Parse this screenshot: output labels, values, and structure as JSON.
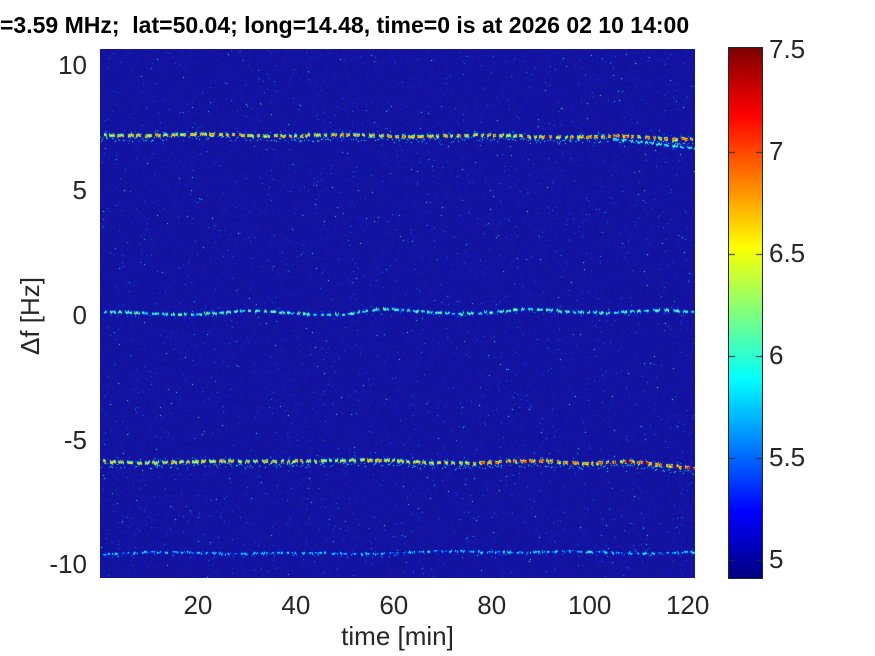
{
  "figure": {
    "title": "=3.59 MHz;  lat=50.04; long=14.48, time=0 is at 2026 02 10 14:00"
  },
  "chart_data": {
    "type": "heatmap",
    "title": "=3.59 MHz;  lat=50.04; long=14.48, time=0 is at 2026 02 10 14:00",
    "xlabel": "time [min]",
    "ylabel": "Δf [Hz]",
    "xlim": [
      0,
      121.5
    ],
    "ylim": [
      -10.55,
      10.65
    ],
    "xticks": [
      20,
      40,
      60,
      80,
      100,
      120
    ],
    "yticks": [
      10,
      5,
      0,
      -5,
      -10
    ],
    "grid": false,
    "legend": false,
    "colormap": "jet",
    "background_value": 4.98,
    "background_rgb": [
      20,
      20,
      158
    ],
    "noise": {
      "speckle_prob": 0.012,
      "speckle_value": [
        5.1,
        5.6
      ],
      "bright_speckle_prob": 0.0012,
      "bright_speckle_value": [
        5.7,
        6.2
      ]
    },
    "colorbar": {
      "vmin": 4.91,
      "vmax": 7.51,
      "ticks": [
        5,
        5.5,
        6,
        6.5,
        7,
        7.5
      ],
      "tick_color": "#262626"
    },
    "lines": [
      {
        "name": "doppler-trace-upper",
        "points": [
          [
            0,
            7.25
          ],
          [
            30,
            7.22
          ],
          [
            60,
            7.2
          ],
          [
            90,
            7.18
          ],
          [
            105,
            7.15
          ],
          [
            121.5,
            7.08
          ]
        ],
        "intensity": [
          6.4,
          7.05
        ],
        "intensity_right": [
          6.5,
          7.3
        ],
        "right_from": 95,
        "fuzz": "below"
      },
      {
        "name": "doppler-trace-upper-branch",
        "points": [
          [
            104,
            7.1
          ],
          [
            112,
            6.95
          ],
          [
            121.5,
            6.68
          ]
        ],
        "intensity": [
          5.8,
          6.4
        ],
        "fuzz": "slight"
      },
      {
        "name": "doppler-trace-center",
        "points": [
          [
            0,
            0.1
          ],
          [
            20,
            0.08
          ],
          [
            30,
            0.15
          ],
          [
            40,
            0.1
          ],
          [
            50,
            0.05
          ],
          [
            57,
            0.22
          ],
          [
            63,
            0.18
          ],
          [
            72,
            0.1
          ],
          [
            80,
            0.14
          ],
          [
            87,
            0.22
          ],
          [
            95,
            0.16
          ],
          [
            105,
            0.14
          ],
          [
            113,
            0.2
          ],
          [
            121.5,
            0.12
          ]
        ],
        "intensity": [
          5.8,
          6.45
        ],
        "fuzz": "slight"
      },
      {
        "name": "doppler-trace-lower",
        "points": [
          [
            0,
            -5.85
          ],
          [
            20,
            -5.9
          ],
          [
            35,
            -5.82
          ],
          [
            50,
            -5.85
          ],
          [
            60,
            -5.8
          ],
          [
            70,
            -5.9
          ],
          [
            78,
            -5.95
          ],
          [
            85,
            -5.85
          ],
          [
            92,
            -5.8
          ],
          [
            100,
            -5.95
          ],
          [
            108,
            -5.88
          ],
          [
            115,
            -6.0
          ],
          [
            121.5,
            -6.08
          ]
        ],
        "intensity": [
          6.3,
          7.0
        ],
        "intensity_right": [
          6.5,
          7.45
        ],
        "right_from": 75,
        "fuzz": "below"
      },
      {
        "name": "doppler-trace-bottom",
        "points": [
          [
            0,
            -9.55
          ],
          [
            20,
            -9.5
          ],
          [
            40,
            -9.55
          ],
          [
            60,
            -9.5
          ],
          [
            80,
            -9.45
          ],
          [
            100,
            -9.5
          ],
          [
            121.5,
            -9.5
          ]
        ],
        "intensity": [
          5.4,
          6.15
        ],
        "fuzz": "slight"
      }
    ]
  }
}
